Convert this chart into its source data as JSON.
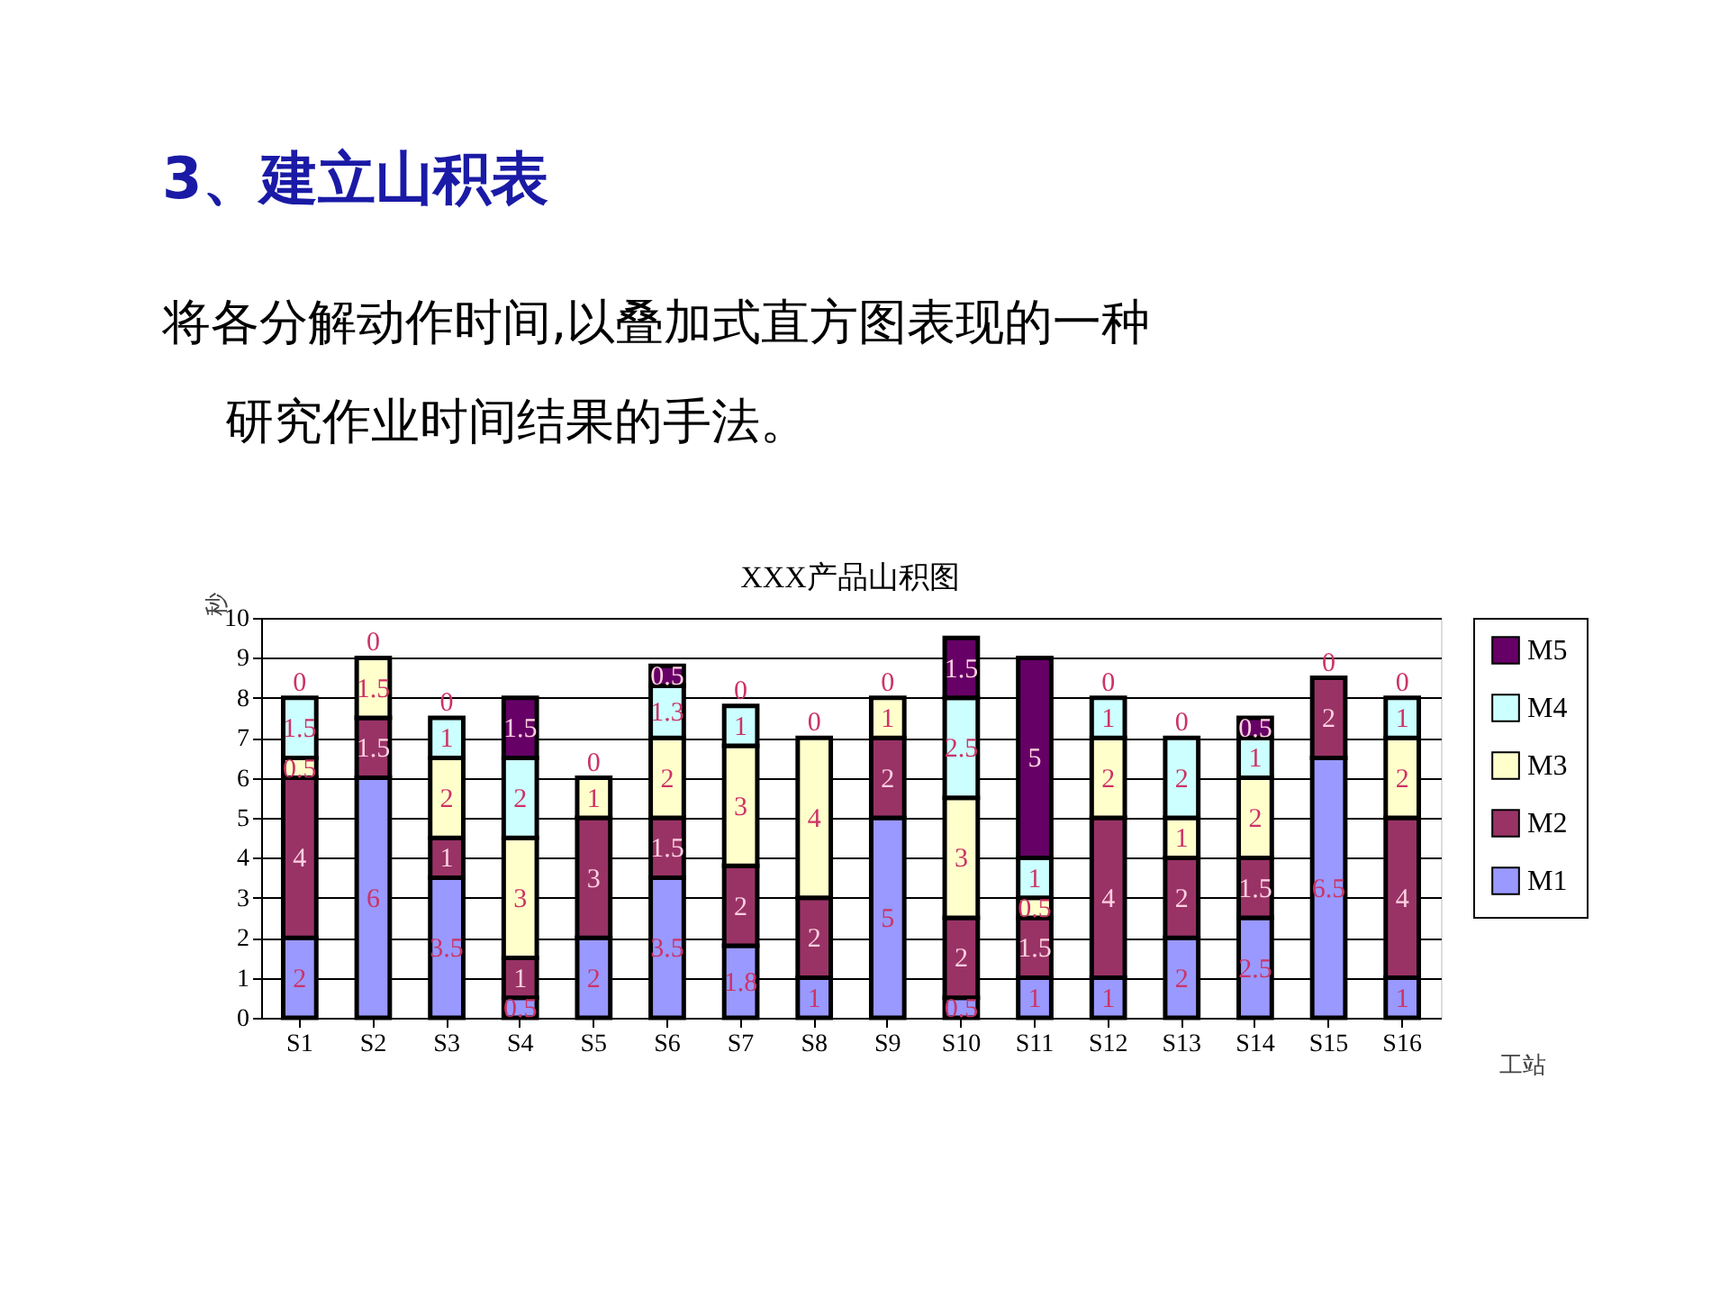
{
  "chart_data": {
    "type": "bar",
    "stacked": true,
    "title": "XXX产品山积图",
    "annotations": [
      "3、建立山积表",
      "将各分解动作时间,以叠加式直方图表现的一种研究作业时间结果的手法。"
    ],
    "xlabel": "工站",
    "ylabel": "秒",
    "categories": [
      "S1",
      "S2",
      "S3",
      "S4",
      "S5",
      "S6",
      "S7",
      "S8",
      "S9",
      "S10",
      "S11",
      "S12",
      "S13",
      "S14",
      "S15",
      "S16"
    ],
    "series": [
      {
        "name": "M1",
        "color": "#9999ff",
        "values": [
          2,
          6,
          3.5,
          0.5,
          2,
          3.5,
          1.8,
          1,
          5,
          0.5,
          1,
          1,
          2,
          2.5,
          6.5,
          1
        ],
        "value_labels": [
          "2",
          "6",
          "3.5",
          "0.5",
          "2",
          "3.5",
          "1.8",
          "1",
          "5",
          "0.5",
          "1",
          "1",
          "2",
          "2.5",
          "6.5",
          "1"
        ]
      },
      {
        "name": "M2",
        "color": "#993366",
        "values": [
          4,
          1.5,
          1,
          1,
          3,
          1.5,
          2,
          2,
          2,
          2,
          1.5,
          4,
          2,
          1.5,
          2,
          4
        ],
        "value_labels": [
          "4",
          "1.5",
          "1",
          "1",
          "3",
          "1.5",
          "2",
          "2",
          "2",
          "2",
          "1.5",
          "4",
          "2",
          "1.5",
          "2",
          "4"
        ]
      },
      {
        "name": "M3",
        "color": "#ffffcc",
        "values": [
          0.5,
          1.5,
          2,
          3,
          1,
          2,
          3,
          4,
          1,
          3,
          0.5,
          2,
          1,
          2,
          0,
          2
        ],
        "value_labels": [
          "0.5",
          "1.5",
          "2",
          "3",
          "1",
          "2",
          "3",
          "4",
          "1",
          "3",
          "0.5",
          "2",
          "1",
          "2",
          null,
          "2"
        ]
      },
      {
        "name": "M4",
        "color": "#ccffff",
        "values": [
          1.5,
          0,
          1,
          2,
          0,
          1.3,
          1,
          0,
          0,
          2.5,
          1,
          1,
          2,
          1,
          0,
          1
        ],
        "value_labels": [
          "1.5",
          null,
          "1",
          "2",
          null,
          "1.3",
          "1",
          null,
          null,
          "2.5",
          "1",
          "1",
          "2",
          "1",
          null,
          "1"
        ]
      },
      {
        "name": "M5",
        "color": "#660066",
        "values": [
          0,
          0,
          0,
          1.5,
          0,
          0.5,
          0,
          0,
          0,
          1.5,
          5,
          0,
          0,
          0.5,
          0,
          0
        ],
        "value_labels": [
          "0",
          "0",
          "0",
          "1.5",
          "0",
          "0.5",
          "0",
          "0",
          "0",
          "1.5",
          "5",
          "0",
          "0",
          "0.5",
          "0",
          "0"
        ]
      }
    ],
    "ylim": [
      0,
      10
    ],
    "yticks": [
      0,
      1,
      2,
      3,
      4,
      5,
      6,
      7,
      8,
      9,
      10
    ],
    "grid": "y",
    "legend": "right"
  }
}
